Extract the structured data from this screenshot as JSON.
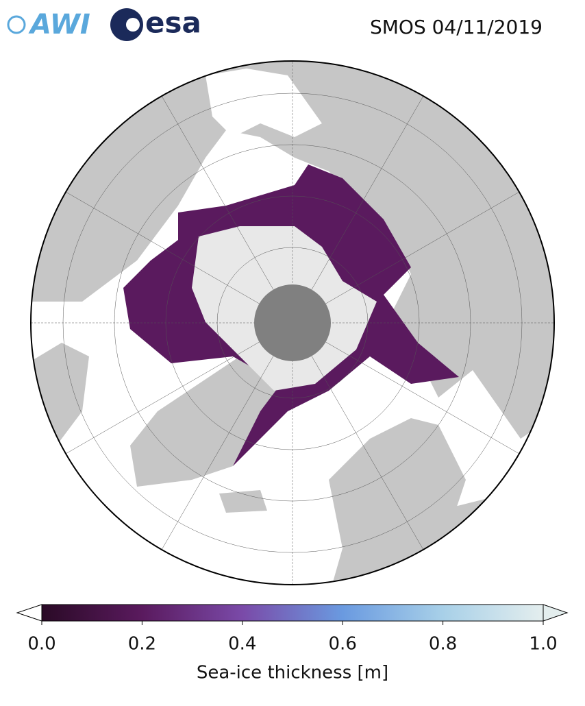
{
  "header": {
    "logos": [
      "AWI",
      "esa"
    ],
    "title": "SMOS 04/11/2019"
  },
  "colorbar": {
    "label": "Sea-ice thickness [m]",
    "range": [
      0,
      1
    ],
    "ticks": [
      {
        "value": 0,
        "label": "0.0"
      },
      {
        "value": 0.2,
        "label": "0.2"
      },
      {
        "value": 0.4,
        "label": "0.4"
      },
      {
        "value": 0.6,
        "label": "0.6"
      },
      {
        "value": 0.8,
        "label": "0.8"
      },
      {
        "value": 1,
        "label": "1.0"
      }
    ],
    "colors": [
      "#2a0a26",
      "#5a1a5e",
      "#7a4aa8",
      "#6a9ae0",
      "#a8d0e8",
      "#e4eeee"
    ]
  }
}
